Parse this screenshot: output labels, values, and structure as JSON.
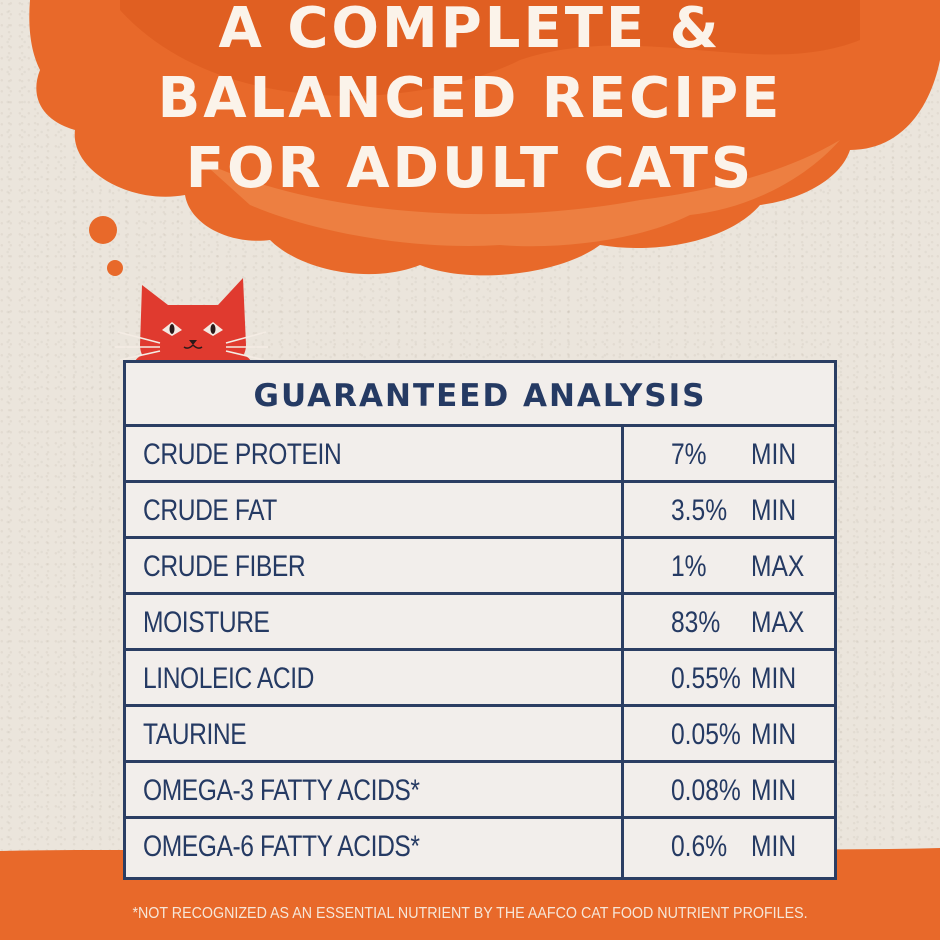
{
  "headline": {
    "line1": "A COMPLETE &",
    "line2": "BALANCED RECIPE",
    "line3": "FOR ADULT CATS"
  },
  "analysis": {
    "title": "GUARANTEED ANALYSIS",
    "rows": [
      {
        "name": "CRUDE PROTEIN",
        "value": "7%",
        "unit": "MIN"
      },
      {
        "name": "CRUDE FAT",
        "value": "3.5%",
        "unit": "MIN"
      },
      {
        "name": "CRUDE FIBER",
        "value": "1%",
        "unit": "MAX"
      },
      {
        "name": "MOISTURE",
        "value": "83%",
        "unit": "MAX"
      },
      {
        "name": "LINOLEIC ACID",
        "value": "0.55%",
        "unit": "MIN"
      },
      {
        "name": "TAURINE",
        "value": "0.05%",
        "unit": "MIN"
      },
      {
        "name": "OMEGA-3 FATTY ACIDS*",
        "value": "0.08%",
        "unit": "MIN"
      },
      {
        "name": "OMEGA-6 FATTY ACIDS*",
        "value": "0.6%",
        "unit": "MIN"
      }
    ]
  },
  "footnote": "*NOT RECOGNIZED AS AN ESSENTIAL NUTRIENT BY THE AAFCO CAT FOOD NUTRIENT PROFILES.",
  "colors": {
    "orange": "#e8692a",
    "orange_dark": "#d9571c",
    "navy": "#253a63",
    "paper": "#ebe5dc",
    "cat_red": "#e03a2f"
  },
  "icons": [
    "thought-cloud-icon",
    "cat-icon"
  ]
}
